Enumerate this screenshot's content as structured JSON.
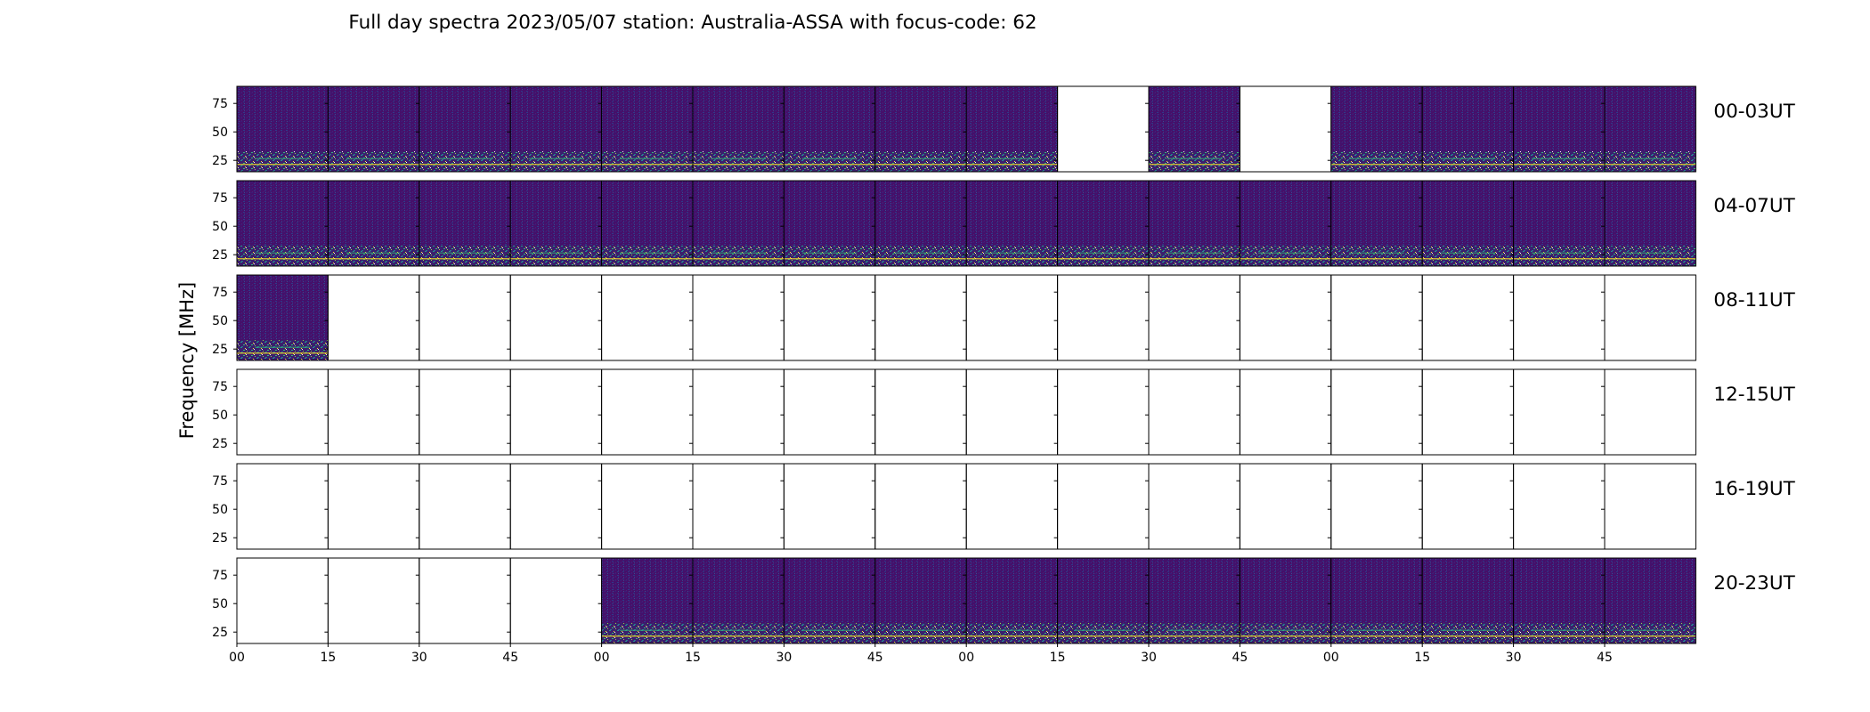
{
  "chart_data": {
    "type": "heatmap",
    "title": "Full day spectra 2023/05/07 station: Australia-ASSA with focus-code: 62",
    "ylabel": "Frequency [MHz]",
    "ylim": [
      15,
      90
    ],
    "y_ticks": [
      25,
      50,
      75
    ],
    "x_tick_labels": [
      "00",
      "15",
      "30",
      "45",
      "00",
      "15",
      "30",
      "45",
      "00",
      "15",
      "30",
      "45",
      "00",
      "15",
      "30",
      "45"
    ],
    "colormap": "viridis",
    "grid": false,
    "rows": [
      {
        "label": "00-03UT",
        "panels": [
          1,
          1,
          1,
          1,
          1,
          1,
          1,
          1,
          1,
          0,
          1,
          0,
          1,
          1,
          1,
          1
        ]
      },
      {
        "label": "04-07UT",
        "panels": [
          1,
          1,
          1,
          1,
          1,
          1,
          1,
          1,
          1,
          1,
          1,
          1,
          1,
          1,
          1,
          1
        ]
      },
      {
        "label": "08-11UT",
        "panels": [
          1,
          0,
          0,
          0,
          0,
          0,
          0,
          0,
          0,
          0,
          0,
          0,
          0,
          0,
          0,
          0
        ]
      },
      {
        "label": "12-15UT",
        "panels": [
          0,
          0,
          0,
          0,
          0,
          0,
          0,
          0,
          0,
          0,
          0,
          0,
          0,
          0,
          0,
          0
        ]
      },
      {
        "label": "16-19UT",
        "panels": [
          0,
          0,
          0,
          0,
          0,
          0,
          0,
          0,
          0,
          0,
          0,
          0,
          0,
          0,
          0,
          0
        ]
      },
      {
        "label": "20-23UT",
        "panels": [
          0,
          0,
          0,
          0,
          1,
          1,
          1,
          1,
          1,
          1,
          1,
          1,
          1,
          1,
          1,
          1
        ]
      }
    ]
  }
}
